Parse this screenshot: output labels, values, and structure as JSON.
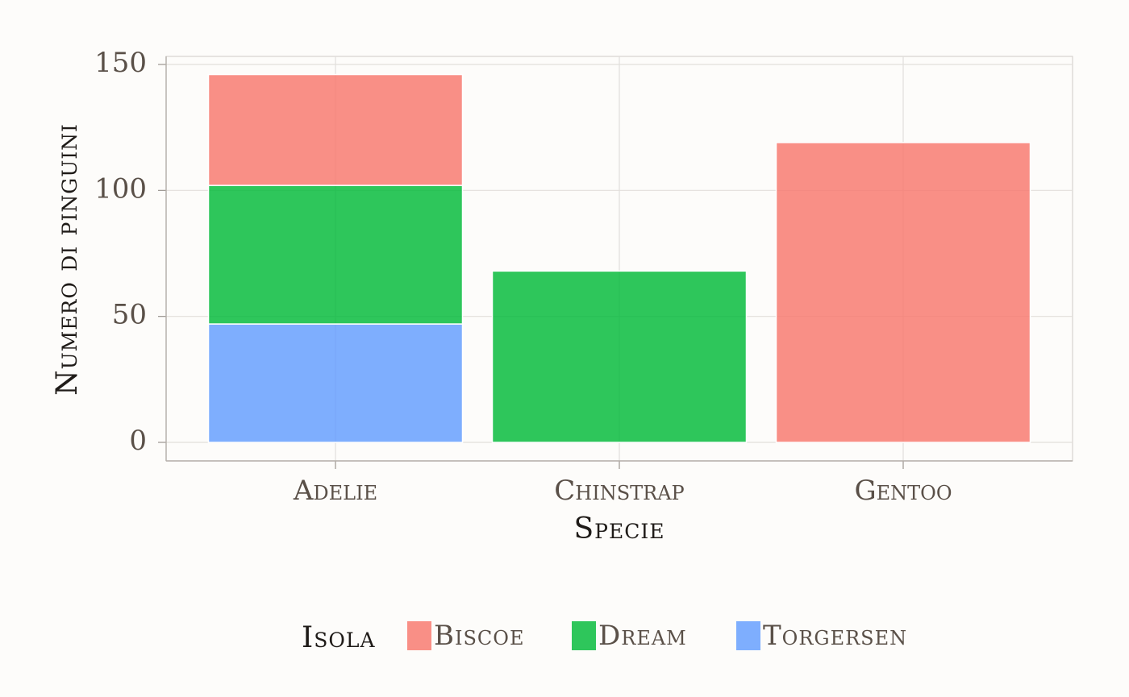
{
  "chart_data": {
    "type": "bar",
    "stacked": true,
    "title": "",
    "xlabel": "Specie",
    "ylabel": "Numero di pinguini",
    "categories": [
      "Adelie",
      "Chinstrap",
      "Gentoo"
    ],
    "series": [
      {
        "name": "Biscoe",
        "color": "#f8766d",
        "values": [
          44,
          0,
          119
        ]
      },
      {
        "name": "Dream",
        "color": "#00ba38",
        "values": [
          55,
          68,
          0
        ]
      },
      {
        "name": "Torgersen",
        "color": "#619cff",
        "values": [
          47,
          0,
          0
        ]
      }
    ],
    "stack_order": [
      "Torgersen",
      "Dream",
      "Biscoe"
    ],
    "ylim": [
      0,
      157
    ],
    "yticks": [
      0,
      50,
      100,
      150
    ],
    "grid": true,
    "legend": {
      "title": "Isola",
      "position": "bottom"
    }
  }
}
